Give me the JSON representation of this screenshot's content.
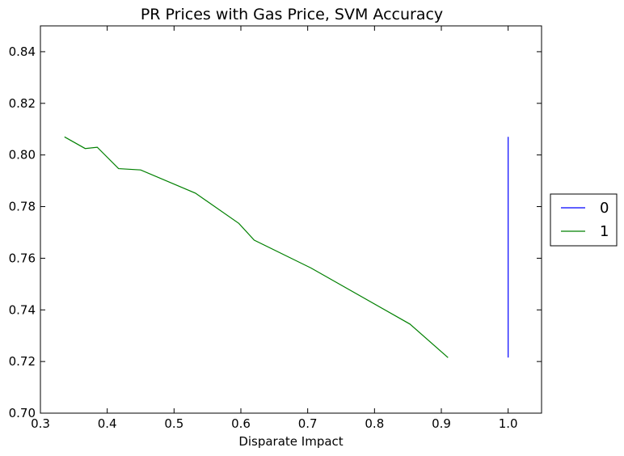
{
  "chart_data": {
    "type": "line",
    "title": "PR Prices with Gas Price, SVM Accuracy",
    "xlabel": "Disparate Impact",
    "ylabel": "",
    "xlim": [
      0.3,
      1.05
    ],
    "ylim": [
      0.7,
      0.85
    ],
    "x_ticks": [
      "0.3",
      "0.4",
      "0.5",
      "0.6",
      "0.7",
      "0.8",
      "0.9",
      "1.0"
    ],
    "x_tick_values": [
      0.3,
      0.4,
      0.5,
      0.6,
      0.7,
      0.8,
      0.9,
      1.0
    ],
    "y_ticks": [
      "0.70",
      "0.72",
      "0.74",
      "0.76",
      "0.78",
      "0.80",
      "0.82",
      "0.84"
    ],
    "y_tick_values": [
      0.7,
      0.72,
      0.74,
      0.76,
      0.78,
      0.8,
      0.82,
      0.84
    ],
    "grid": false,
    "legend_position": "center-right-outside",
    "series": [
      {
        "name": "0",
        "color": "#0000ff",
        "x": [
          1.0,
          1.0,
          1.0,
          1.0
        ],
        "y": [
          0.807,
          0.803,
          0.7215,
          0.803
        ]
      },
      {
        "name": "1",
        "color": "#008000",
        "x": [
          0.336,
          0.367,
          0.385,
          0.417,
          0.45,
          0.532,
          0.597,
          0.62,
          0.705,
          0.853,
          0.91
        ],
        "y": [
          0.807,
          0.8025,
          0.803,
          0.7947,
          0.7942,
          0.7852,
          0.7735,
          0.767,
          0.7562,
          0.7345,
          0.7215
        ]
      }
    ]
  }
}
